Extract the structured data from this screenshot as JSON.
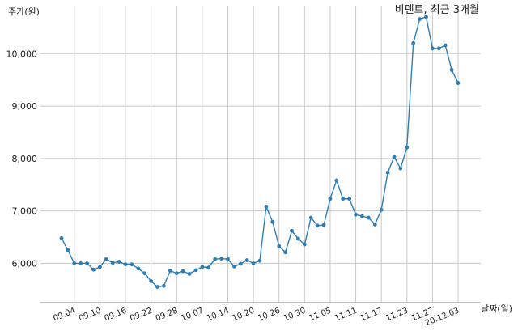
{
  "chart_data": {
    "type": "line",
    "title": "비덴트, 최근 3개월",
    "ylabel": "주가(원)",
    "xlabel": "날짜(일)",
    "ylim": [
      5250,
      10900
    ],
    "yticks": [
      6000,
      7000,
      8000,
      9000,
      10000
    ],
    "ytick_labels": [
      "6,000",
      "7,000",
      "8,000",
      "9,000",
      "10,000"
    ],
    "xtick_labels": [
      "09.04",
      "09.10",
      "09.16",
      "09.22",
      "09.28",
      "10.07",
      "10.14",
      "10.20",
      "10.26",
      "10.30",
      "11.05",
      "11.11",
      "11.17",
      "11.23",
      "11.27",
      "20.12.03"
    ],
    "xtick_indices": [
      2,
      6,
      10,
      14,
      18,
      22,
      26,
      30,
      34,
      38,
      42,
      46,
      50,
      54,
      58,
      62
    ],
    "grid": true,
    "series": [
      {
        "color": "#2e7db4",
        "values": [
          6480,
          6250,
          6000,
          6000,
          6000,
          5880,
          5930,
          6080,
          6010,
          6030,
          5980,
          5980,
          5900,
          5810,
          5660,
          5550,
          5570,
          5860,
          5810,
          5850,
          5800,
          5870,
          5930,
          5920,
          6080,
          6090,
          6080,
          5940,
          5990,
          6060,
          6000,
          6050,
          7080,
          6790,
          6330,
          6210,
          6620,
          6470,
          6360,
          6870,
          6720,
          6730,
          7230,
          7580,
          7230,
          7230,
          6930,
          6900,
          6870,
          6740,
          7020,
          7730,
          8030,
          7810,
          8210,
          10200,
          10660,
          10700,
          10100,
          10100,
          10160,
          9690,
          9440
        ]
      }
    ]
  }
}
